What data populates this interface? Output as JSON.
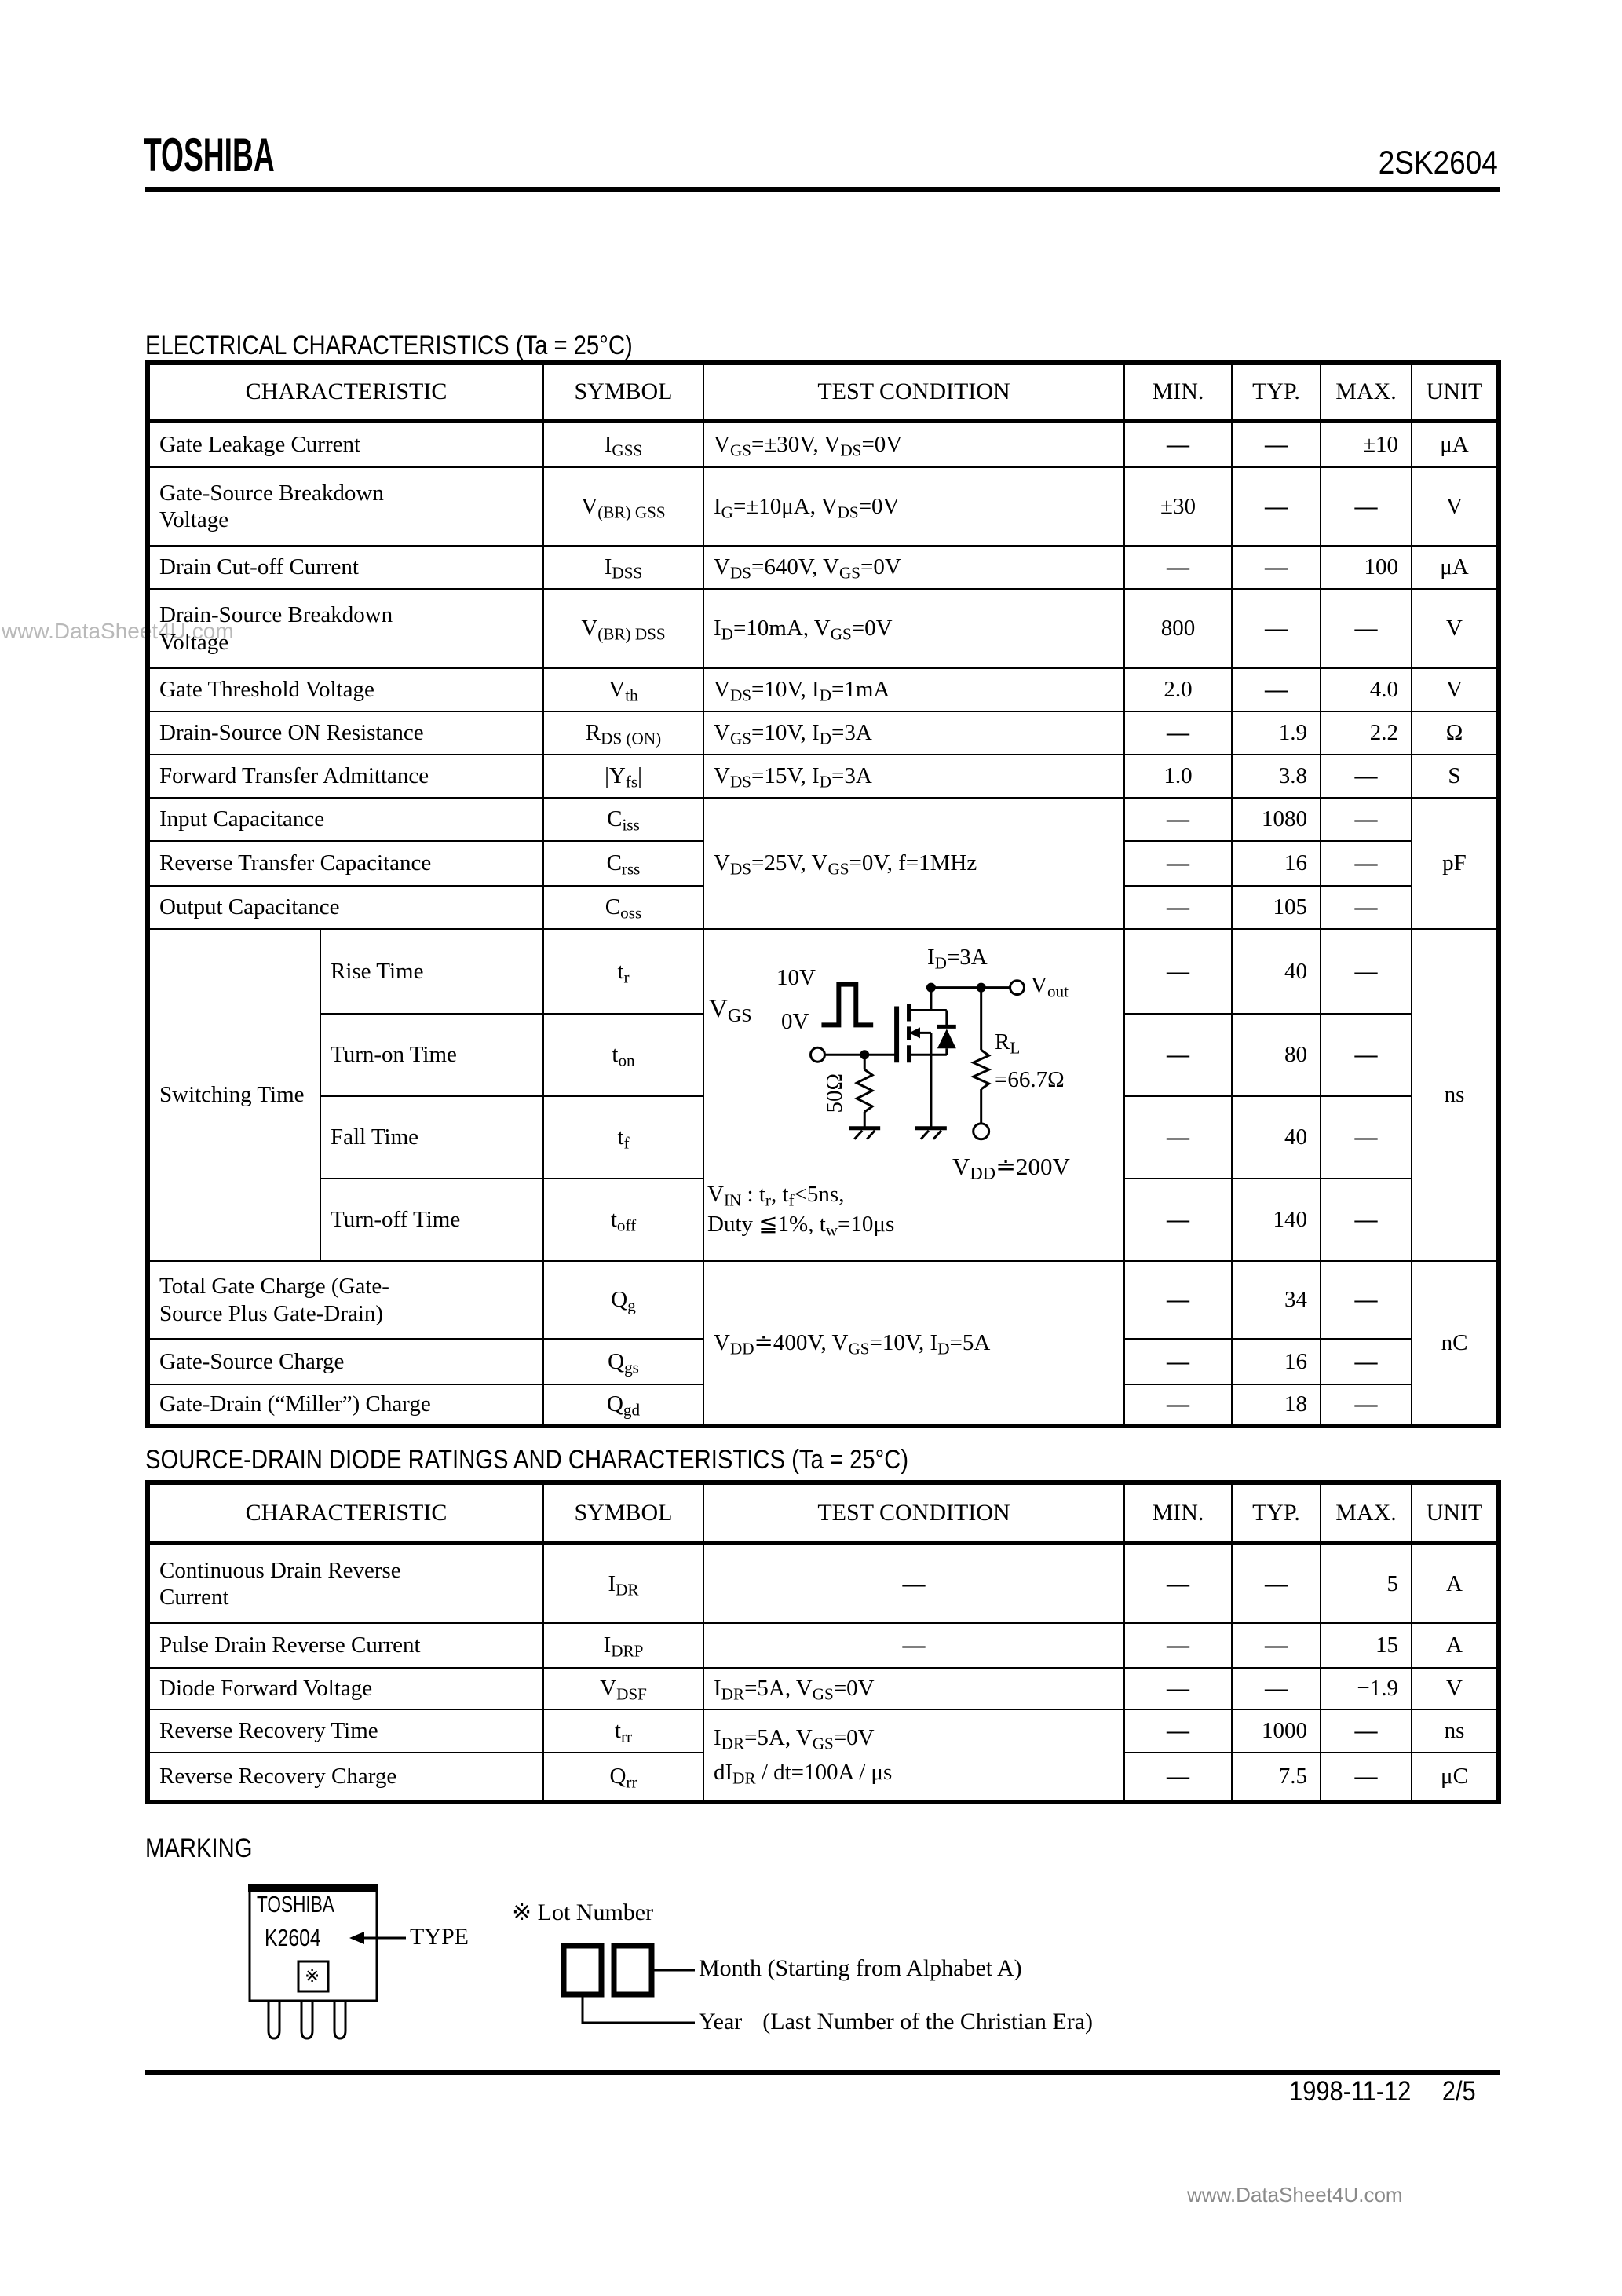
{
  "page": {
    "brand": "TOSHIBA",
    "part_number": "2SK2604",
    "footer_date": "1998-11-12",
    "footer_page": "2/5",
    "watermark_side": "www.DataSheet4U.com",
    "watermark_bottom": "www.DataSheet4U.com"
  },
  "electrical": {
    "heading": "ELECTRICAL CHARACTERISTICS (Ta = 25°C)",
    "columns": [
      "CHARACTERISTIC",
      "SYMBOL",
      "TEST CONDITION",
      "MIN.",
      "TYP.",
      "MAX.",
      "UNIT"
    ],
    "simple_rows": [
      {
        "c": "Gate Leakage Current",
        "s": "I_{GSS}",
        "cond": "V_{GS}=±30V, V_{DS}=0V",
        "min": "—",
        "typ": "—",
        "max": "±10",
        "unit": "μA"
      },
      {
        "c": "Gate-Source Breakdown\nVoltage",
        "s": "V_{(BR) GSS}",
        "cond": "I_{G}=±10μA, V_{DS}=0V",
        "min": "±30",
        "typ": "—",
        "max": "—",
        "unit": "V"
      },
      {
        "c": "Drain Cut-off Current",
        "s": "I_{DSS}",
        "cond": "V_{DS}=640V, V_{GS}=0V",
        "min": "—",
        "typ": "—",
        "max": "100",
        "unit": "μA"
      },
      {
        "c": "Drain-Source Breakdown\nVoltage",
        "s": "V_{(BR) DSS}",
        "cond": "I_{D}=10mA, V_{GS}=0V",
        "min": "800",
        "typ": "—",
        "max": "—",
        "unit": "V"
      },
      {
        "c": "Gate Threshold Voltage",
        "s": "V_{th}",
        "cond": "V_{DS}=10V, I_{D}=1mA",
        "min": "2.0",
        "typ": "—",
        "max": "4.0",
        "unit": "V"
      },
      {
        "c": "Drain-Source ON Resistance",
        "s": "R_{DS (ON)}",
        "cond": "V_{GS}=10V, I_{D}=3A",
        "min": "—",
        "typ": "1.9",
        "max": "2.2",
        "unit": "Ω"
      },
      {
        "c": "Forward Transfer Admittance",
        "s": "|Y_{fs}|",
        "cond": "V_{DS}=15V, I_{D}=3A",
        "min": "1.0",
        "typ": "3.8",
        "max": "—",
        "unit": "S"
      }
    ],
    "capacitance": {
      "cond": "V_{DS}=25V, V_{GS}=0V, f=1MHz",
      "unit": "pF",
      "rows": [
        {
          "c": "Input Capacitance",
          "s": "C_{iss}",
          "min": "—",
          "typ": "1080",
          "max": "—"
        },
        {
          "c": "Reverse Transfer Capacitance",
          "s": "C_{rss}",
          "min": "—",
          "typ": "16",
          "max": "—"
        },
        {
          "c": "Output Capacitance",
          "s": "C_{oss}",
          "min": "—",
          "typ": "105",
          "max": "—"
        }
      ]
    },
    "switching": {
      "label": "Switching Time",
      "unit": "ns",
      "rows": [
        {
          "c": "Rise Time",
          "s": "t_{r}",
          "min": "—",
          "typ": "40",
          "max": "—"
        },
        {
          "c": "Turn-on Time",
          "s": "t_{on}",
          "min": "—",
          "typ": "80",
          "max": "—"
        },
        {
          "c": "Fall Time",
          "s": "t_{f}",
          "min": "—",
          "typ": "40",
          "max": "—"
        },
        {
          "c": "Turn-off Time",
          "s": "t_{off}",
          "min": "—",
          "typ": "140",
          "max": "—"
        }
      ],
      "circuit": {
        "vgs_label": "V_{GS}",
        "high_label": "10V",
        "low_label": "0V",
        "id_label": "I_{D}=3A",
        "vout_label": "V_{out}",
        "rl_label": "R_{L}",
        "rl_value": "=66.7Ω",
        "gate_resistor": "50Ω",
        "vdd_label": "V_{DD}≐200V",
        "note_line1": "V_{IN} : t_{r}, t_{f}<5ns,",
        "note_line2": "Duty ≦1%, t_{w}=10μs"
      }
    },
    "charge": {
      "cond": "V_{DD}≐400V, V_{GS}=10V, I_{D}=5A",
      "unit": "nC",
      "rows": [
        {
          "c": "Total Gate Charge (Gate-\nSource Plus Gate-Drain)",
          "s": "Q_{g}",
          "min": "—",
          "typ": "34",
          "max": "—"
        },
        {
          "c": "Gate-Source Charge",
          "s": "Q_{gs}",
          "min": "—",
          "typ": "16",
          "max": "—"
        },
        {
          "c": "Gate-Drain (“Miller”) Charge",
          "s": "Q_{gd}",
          "min": "—",
          "typ": "18",
          "max": "—"
        }
      ]
    }
  },
  "diode": {
    "heading": "SOURCE-DRAIN DIODE RATINGS AND CHARACTERISTICS (Ta = 25°C)",
    "columns": [
      "CHARACTERISTIC",
      "SYMBOL",
      "TEST CONDITION",
      "MIN.",
      "TYP.",
      "MAX.",
      "UNIT"
    ],
    "rows": [
      {
        "c": "Continuous Drain Reverse\nCurrent",
        "s": "I_{DR}",
        "cond": "—",
        "min": "—",
        "typ": "—",
        "max": "5",
        "unit": "A"
      },
      {
        "c": "Pulse Drain Reverse Current",
        "s": "I_{DRP}",
        "cond": "—",
        "min": "—",
        "typ": "—",
        "max": "15",
        "unit": "A"
      },
      {
        "c": "Diode Forward Voltage",
        "s": "V_{DSF}",
        "cond": "I_{DR}=5A, V_{GS}=0V",
        "min": "—",
        "typ": "—",
        "max": "−1.9",
        "unit": "V"
      }
    ],
    "recovery": {
      "cond_line1": "I_{DR}=5A, V_{GS}=0V",
      "cond_line2": "dI_{DR} / dt=100A / μs",
      "rows": [
        {
          "c": "Reverse Recovery Time",
          "s": "t_{rr}",
          "min": "—",
          "typ": "1000",
          "max": "—",
          "unit": "ns"
        },
        {
          "c": "Reverse Recovery Charge",
          "s": "Q_{rr}",
          "min": "—",
          "typ": "7.5",
          "max": "—",
          "unit": "μC"
        }
      ]
    }
  },
  "marking": {
    "heading": "MARKING",
    "package": {
      "brand": "TOSHIBA",
      "type_code": "K2604",
      "lot_mark": "※"
    },
    "type_label": "TYPE",
    "lot_note": "※ Lot Number",
    "month_label": "Month (Starting from Alphabet A)",
    "year_label": "Year",
    "year_note": "(Last Number of the Christian Era)"
  }
}
